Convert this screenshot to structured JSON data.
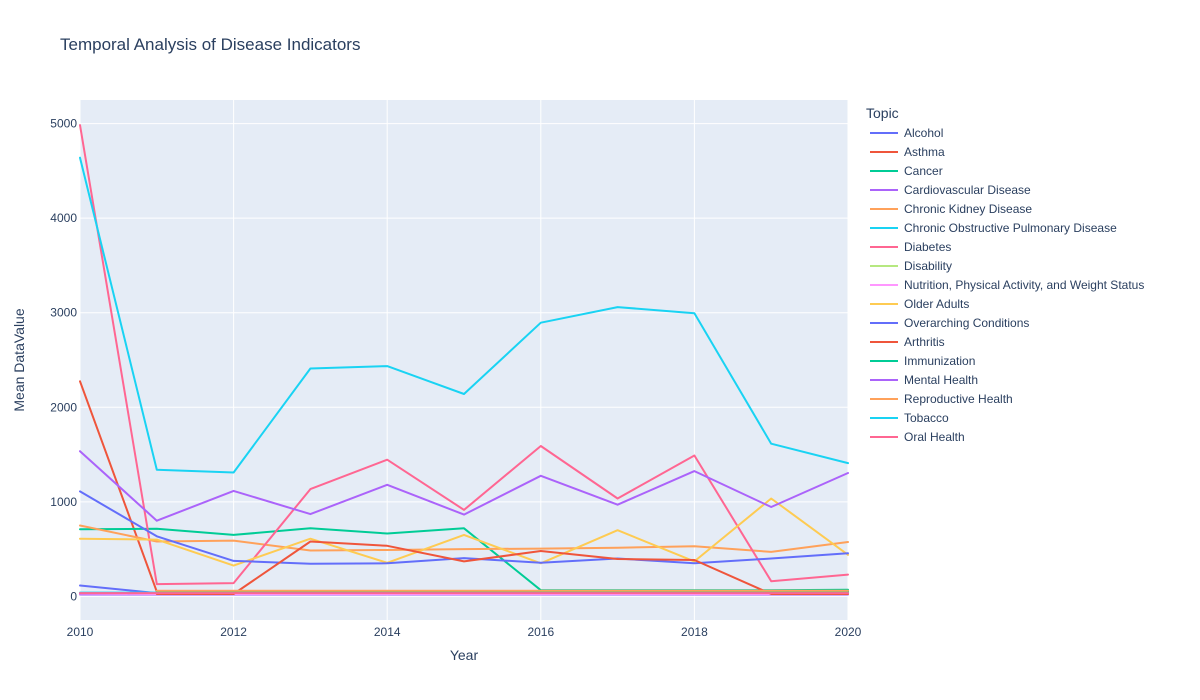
{
  "chart_data": {
    "type": "line",
    "title": "Temporal Analysis of Disease Indicators",
    "xlabel": "Year",
    "ylabel": "Mean DataValue",
    "xlim": [
      2010,
      2020
    ],
    "ylim": [
      -250,
      5250
    ],
    "x_ticks": [
      2010,
      2012,
      2014,
      2016,
      2018,
      2020
    ],
    "y_ticks": [
      0,
      1000,
      2000,
      3000,
      4000,
      5000
    ],
    "grid": true,
    "legend_title": "Topic",
    "legend_position": "right",
    "series": [
      {
        "name": "Alcohol",
        "color": "#636efa",
        "x": [
          2010,
          2011,
          2012,
          2013,
          2014,
          2015,
          2016,
          2017,
          2018,
          2019,
          2020
        ],
        "y": [
          115,
          35,
          30,
          30,
          30,
          30,
          30,
          30,
          30,
          30,
          30
        ]
      },
      {
        "name": "Asthma",
        "color": "#EF553B",
        "x": [
          2010,
          2011,
          2012,
          2013,
          2014,
          2015,
          2016,
          2017,
          2018,
          2019,
          2020
        ],
        "y": [
          2275,
          50,
          50,
          50,
          50,
          50,
          50,
          50,
          50,
          50,
          50
        ]
      },
      {
        "name": "Cancer",
        "color": "#00cc96",
        "x": [
          2010,
          2011,
          2012,
          2013,
          2014,
          2015,
          2016,
          2017,
          2018,
          2019,
          2020
        ],
        "y": [
          710,
          715,
          650,
          720,
          665,
          720,
          65,
          65,
          65,
          65,
          70
        ]
      },
      {
        "name": "Cardiovascular Disease",
        "color": "#ab63fa",
        "x": [
          2010,
          2011,
          2012,
          2013,
          2014,
          2015,
          2016,
          2017,
          2018,
          2019,
          2020
        ],
        "y": [
          20,
          20,
          20,
          20,
          20,
          20,
          20,
          20,
          20,
          20,
          20
        ]
      },
      {
        "name": "Chronic Kidney Disease",
        "color": "#FFA15A",
        "x": [
          2010,
          2011,
          2012,
          2013,
          2014,
          2015,
          2016,
          2017,
          2018,
          2019,
          2020
        ],
        "y": [
          750,
          580,
          590,
          485,
          490,
          500,
          505,
          515,
          530,
          470,
          575
        ]
      },
      {
        "name": "Chronic Obstructive Pulmonary Disease",
        "color": "#19d3f3",
        "x": [
          2010,
          2011,
          2012,
          2013,
          2014,
          2015,
          2016,
          2017,
          2018,
          2019,
          2020
        ],
        "y": [
          40,
          40,
          40,
          40,
          40,
          40,
          40,
          40,
          40,
          40,
          40
        ]
      },
      {
        "name": "Diabetes",
        "color": "#FF6692",
        "x": [
          2010,
          2011,
          2012,
          2013,
          2014,
          2015,
          2016,
          2017,
          2018,
          2019,
          2020
        ],
        "y": [
          4985,
          130,
          140,
          1135,
          1445,
          915,
          1590,
          1035,
          1490,
          160,
          230
        ]
      },
      {
        "name": "Disability",
        "color": "#B6E880",
        "x": [
          2010,
          2011,
          2012,
          2013,
          2014,
          2015,
          2016,
          2017,
          2018,
          2019,
          2020
        ],
        "y": [
          30,
          30,
          30,
          30,
          30,
          30,
          30,
          30,
          30,
          30,
          30
        ]
      },
      {
        "name": "Nutrition, Physical Activity, and Weight Status",
        "color": "#FF97FF",
        "x": [
          2010,
          2011,
          2012,
          2013,
          2014,
          2015,
          2016,
          2017,
          2018,
          2019,
          2020
        ],
        "y": [
          30,
          25,
          25,
          25,
          25,
          25,
          25,
          25,
          25,
          25,
          25
        ]
      },
      {
        "name": "Older Adults",
        "color": "#FECB52",
        "x": [
          2010,
          2011,
          2012,
          2013,
          2014,
          2015,
          2016,
          2017,
          2018,
          2019,
          2020
        ],
        "y": [
          610,
          600,
          325,
          610,
          355,
          650,
          350,
          700,
          370,
          1035,
          440
        ]
      },
      {
        "name": "Overarching Conditions",
        "color": "#636efa",
        "x": [
          2010,
          2011,
          2012,
          2013,
          2014,
          2015,
          2016,
          2017,
          2018,
          2019,
          2020
        ],
        "y": [
          1110,
          635,
          375,
          345,
          350,
          405,
          355,
          400,
          350,
          400,
          455
        ]
      },
      {
        "name": "Arthritis",
        "color": "#EF553B",
        "x": [
          2011,
          2012,
          2013,
          2014,
          2015,
          2016,
          2017,
          2018,
          2019,
          2020
        ],
        "y": [
          25,
          25,
          580,
          535,
          370,
          480,
          395,
          385,
          25,
          25
        ]
      },
      {
        "name": "Immunization",
        "color": "#00cc96",
        "x": [
          2011,
          2012,
          2013,
          2014,
          2015,
          2016,
          2017,
          2018,
          2019,
          2020
        ],
        "y": [
          55,
          55,
          55,
          55,
          55,
          55,
          55,
          55,
          55,
          55
        ]
      },
      {
        "name": "Mental Health",
        "color": "#ab63fa",
        "x": [
          2010,
          2011,
          2012,
          2013,
          2014,
          2015,
          2016,
          2017,
          2018,
          2019,
          2020
        ],
        "y": [
          1535,
          800,
          1115,
          870,
          1180,
          865,
          1275,
          970,
          1325,
          945,
          1305
        ]
      },
      {
        "name": "Reproductive Health",
        "color": "#FFA15A",
        "x": [
          2011,
          2012,
          2013,
          2014,
          2015,
          2016,
          2017,
          2018,
          2019,
          2020
        ],
        "y": [
          60,
          60,
          60,
          60,
          60,
          60,
          60,
          60,
          60,
          60
        ]
      },
      {
        "name": "Tobacco",
        "color": "#19d3f3",
        "x": [
          2010,
          2011,
          2012,
          2013,
          2014,
          2015,
          2016,
          2017,
          2018,
          2019,
          2020
        ],
        "y": [
          4640,
          1340,
          1310,
          2410,
          2435,
          2140,
          2895,
          3060,
          2995,
          1615,
          1410
        ]
      },
      {
        "name": "Oral Health",
        "color": "#FF6692",
        "x": [
          2010,
          2011,
          2012,
          2013,
          2014,
          2015,
          2016,
          2017,
          2018,
          2019,
          2020
        ],
        "y": [
          35,
          35,
          35,
          35,
          35,
          35,
          35,
          35,
          35,
          35,
          35
        ]
      }
    ]
  }
}
